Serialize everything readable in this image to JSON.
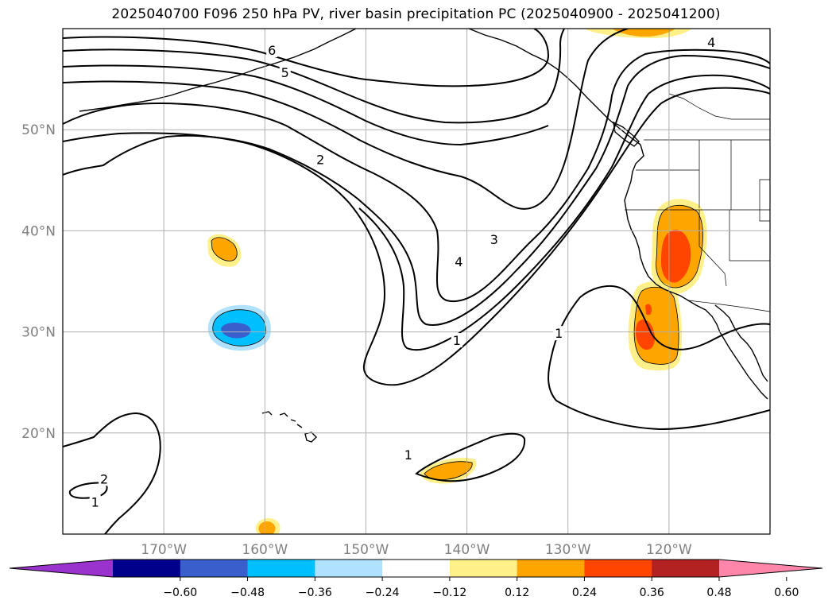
{
  "title": "2025040700 F096 250 hPa PV, river basin precipitation PC (2025040900 - 2025041200)",
  "chart_data": {
    "type": "contour",
    "title": "2025040700 F096 250 hPa PV, river basin precipitation PC (2025040900 - 2025041200)",
    "xlim": [
      -180,
      -110
    ],
    "ylim": [
      10,
      60
    ],
    "grid": true,
    "x_ticks": [
      {
        "value": -170,
        "label": "170°W"
      },
      {
        "value": -160,
        "label": "160°W"
      },
      {
        "value": -150,
        "label": "150°W"
      },
      {
        "value": -140,
        "label": "140°W"
      },
      {
        "value": -130,
        "label": "130°W"
      },
      {
        "value": -120,
        "label": "120°W"
      }
    ],
    "y_ticks": [
      {
        "value": 50,
        "label": "50°N"
      },
      {
        "value": 40,
        "label": "40°N"
      },
      {
        "value": 30,
        "label": "30°N"
      },
      {
        "value": 20,
        "label": "20°N"
      }
    ],
    "colorbar": {
      "levels": [
        "−0.60",
        "−0.48",
        "−0.36",
        "−0.24",
        "−0.12",
        "0.12",
        "0.24",
        "0.36",
        "0.48",
        "0.60"
      ],
      "colors": [
        "#9a32cd",
        "#00008b",
        "#3a5fcd",
        "#00bfff",
        "#b0e2ff",
        "#ffffff",
        "#fff08a",
        "#ffa500",
        "#ff4500",
        "#b22222",
        "#ff86ab"
      ],
      "extend": "both"
    },
    "pv_contour_labels": [
      {
        "text": "6",
        "lon": -159.3,
        "lat": 57.8
      },
      {
        "text": "5",
        "lon": -158.0,
        "lat": 55.6
      },
      {
        "text": "4",
        "lon": -115.8,
        "lat": 58.6
      },
      {
        "text": "2",
        "lon": -154.5,
        "lat": 47.0
      },
      {
        "text": "3",
        "lon": -137.3,
        "lat": 39.1
      },
      {
        "text": "4",
        "lon": -140.8,
        "lat": 36.9
      },
      {
        "text": "1",
        "lon": -141.0,
        "lat": 29.1
      },
      {
        "text": "1",
        "lon": -130.9,
        "lat": 29.8
      },
      {
        "text": "1",
        "lon": -145.8,
        "lat": 17.8
      },
      {
        "text": "2",
        "lon": -175.9,
        "lat": 15.4
      },
      {
        "text": "1",
        "lon": -176.8,
        "lat": 13.1
      }
    ],
    "precip_regions": [
      {
        "name": "california-sierra",
        "sign": "positive",
        "max_level": "0.36-0.48"
      },
      {
        "name": "southern-california",
        "sign": "positive",
        "max_level": "0.36-0.48"
      },
      {
        "name": "north-pacific-38N",
        "sign": "positive",
        "max_level": "0.24-0.36"
      },
      {
        "name": "subtropical-30N",
        "sign": "negative",
        "max_level": "-0.48--0.36"
      },
      {
        "name": "subtropical-16N",
        "sign": "positive",
        "max_level": "0.24-0.36"
      },
      {
        "name": "near-hawaii-10N",
        "sign": "positive",
        "max_level": "0.24-0.36"
      },
      {
        "name": "gulf-of-alaska-60N",
        "sign": "positive",
        "max_level": "0.24-0.36"
      }
    ]
  }
}
